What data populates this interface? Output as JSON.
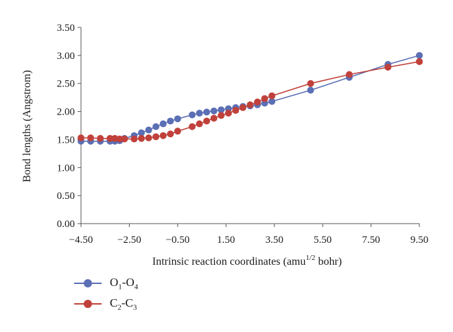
{
  "chart_data": {
    "type": "line",
    "xlabel_main": "Intrinsic reaction coordinates (amu",
    "xlabel_sup": "1/2",
    "xlabel_tail": " bohr)",
    "ylabel": "Bond lengths (Angstrom)",
    "xlim": [
      -4.5,
      9.5
    ],
    "ylim": [
      0.0,
      3.5
    ],
    "x_ticks": [
      "−4.50",
      "−2.50",
      "−0.50",
      "1.50",
      "3.50",
      "5.50",
      "7.50",
      "9.50"
    ],
    "x_tick_values": [
      -4.5,
      -2.5,
      -0.5,
      1.5,
      3.5,
      5.5,
      7.5,
      9.5
    ],
    "y_ticks": [
      "0.00",
      "0.50",
      "1.00",
      "1.50",
      "2.00",
      "2.50",
      "3.00",
      "3.50"
    ],
    "y_tick_values": [
      0.0,
      0.5,
      1.0,
      1.5,
      2.0,
      2.5,
      3.0,
      3.5
    ],
    "legend_position": "bottom-left",
    "grid": false,
    "series": [
      {
        "name": "O1-O4",
        "label_parts": [
          "O",
          "1",
          "-O",
          "4"
        ],
        "color": "#5b6fb5",
        "x": [
          -4.5,
          -4.1,
          -3.7,
          -3.3,
          -3.1,
          -2.9,
          -2.7,
          -2.3,
          -2.0,
          -1.7,
          -1.4,
          -1.1,
          -0.8,
          -0.5,
          0.1,
          0.4,
          0.7,
          1.0,
          1.3,
          1.6,
          1.9,
          2.2,
          2.5,
          2.8,
          3.1,
          3.4,
          5.0,
          6.6,
          8.2,
          9.5
        ],
        "y": [
          1.47,
          1.47,
          1.47,
          1.47,
          1.47,
          1.48,
          1.52,
          1.57,
          1.62,
          1.67,
          1.73,
          1.78,
          1.83,
          1.87,
          1.94,
          1.97,
          1.99,
          2.01,
          2.03,
          2.05,
          2.07,
          2.09,
          2.1,
          2.12,
          2.15,
          2.18,
          2.38,
          2.61,
          2.84,
          3.0
        ]
      },
      {
        "name": "C2-C3",
        "label_parts": [
          "C",
          "2",
          "-C",
          "3"
        ],
        "color": "#c0413b",
        "x": [
          -4.5,
          -4.1,
          -3.7,
          -3.3,
          -3.1,
          -2.9,
          -2.7,
          -2.3,
          -2.0,
          -1.7,
          -1.4,
          -1.1,
          -0.8,
          -0.5,
          0.1,
          0.4,
          0.7,
          1.0,
          1.3,
          1.6,
          1.9,
          2.2,
          2.5,
          2.8,
          3.1,
          3.4,
          5.0,
          6.6,
          8.2,
          9.5
        ],
        "y": [
          1.53,
          1.53,
          1.52,
          1.52,
          1.52,
          1.51,
          1.51,
          1.51,
          1.52,
          1.53,
          1.55,
          1.57,
          1.6,
          1.65,
          1.73,
          1.78,
          1.83,
          1.88,
          1.93,
          1.97,
          2.02,
          2.07,
          2.12,
          2.17,
          2.23,
          2.28,
          2.5,
          2.66,
          2.79,
          2.89
        ]
      }
    ]
  }
}
